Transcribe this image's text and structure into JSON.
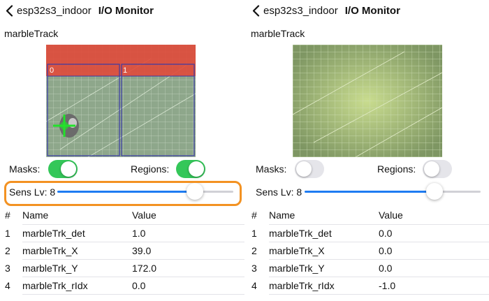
{
  "left": {
    "header": {
      "back_label": "esp32s3_indoor",
      "title": "I/O Monitor"
    },
    "section_title": "marbleTrack",
    "preview": {
      "regions": [
        {
          "label": "0"
        },
        {
          "label": "1"
        }
      ],
      "masks_overlay": "red",
      "tracker": "crosshair-marker"
    },
    "toggles": [
      {
        "label": "Masks:",
        "on": true
      },
      {
        "label": "Regions:",
        "on": true
      }
    ],
    "slider": {
      "label": "Sens Lv: 8",
      "value": 0.78,
      "highlighted": true
    },
    "table": {
      "headers": [
        "#",
        "Name",
        "Value"
      ],
      "rows": [
        {
          "num": "1",
          "name": "marbleTrk_det",
          "value": "1.0"
        },
        {
          "num": "2",
          "name": "marbleTrk_X",
          "value": "39.0"
        },
        {
          "num": "3",
          "name": "marbleTrk_Y",
          "value": "172.0"
        },
        {
          "num": "4",
          "name": "marbleTrk_rIdx",
          "value": "0.0"
        }
      ]
    }
  },
  "right": {
    "header": {
      "back_label": "esp32s3_indoor",
      "title": "I/O Monitor"
    },
    "section_title": "marbleTrack",
    "toggles": [
      {
        "label": "Masks:",
        "on": false
      },
      {
        "label": "Regions:",
        "on": false
      }
    ],
    "slider": {
      "label": "Sens Lv: 8",
      "value": 0.74,
      "highlighted": false
    },
    "table": {
      "headers": [
        "#",
        "Name",
        "Value"
      ],
      "rows": [
        {
          "num": "1",
          "name": "marbleTrk_det",
          "value": "0.0"
        },
        {
          "num": "2",
          "name": "marbleTrk_X",
          "value": "0.0"
        },
        {
          "num": "3",
          "name": "marbleTrk_Y",
          "value": "0.0"
        },
        {
          "num": "4",
          "name": "marbleTrk_rIdx",
          "value": "-1.0"
        }
      ]
    }
  },
  "colors": {
    "accent": "#1e7cf2",
    "switch_on": "#34c759",
    "switch_off": "#e5e5ea",
    "highlight": "#f39222",
    "region_border": "#3a3aa8",
    "mask": "#e04a3a",
    "tracker": "#22e22a"
  }
}
